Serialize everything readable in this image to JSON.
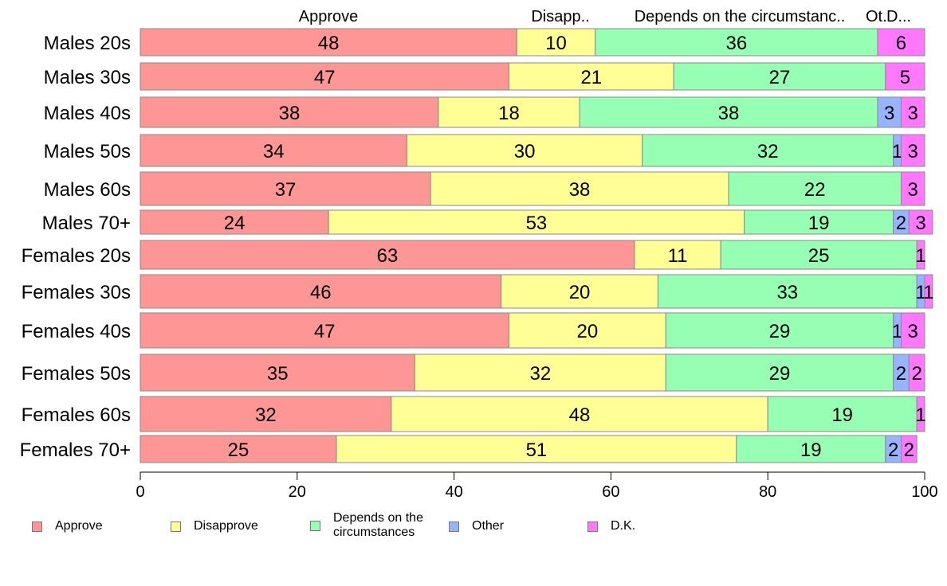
{
  "chart_data": {
    "type": "bar",
    "orientation": "horizontal",
    "stacked": true,
    "categories": [
      "Males 20s",
      "Males 30s",
      "Males 40s",
      "Males 50s",
      "Males 60s",
      "Males 70+",
      "Females 20s",
      "Females 30s",
      "Females 40s",
      "Females 50s",
      "Females 60s",
      "Females 70+"
    ],
    "series": [
      {
        "name": "Approve",
        "color": "#ff9696",
        "values": [
          48,
          47,
          38,
          34,
          37,
          24,
          63,
          46,
          47,
          35,
          32,
          25
        ]
      },
      {
        "name": "Disapprove",
        "color": "#ffff96",
        "values": [
          10,
          21,
          18,
          30,
          38,
          53,
          11,
          20,
          20,
          32,
          48,
          51
        ]
      },
      {
        "name": "Depends on the circumstances",
        "color": "#96ffb4",
        "values": [
          36,
          27,
          38,
          32,
          22,
          19,
          25,
          33,
          29,
          29,
          19,
          19
        ]
      },
      {
        "name": "Other",
        "color": "#96b4ff",
        "values": [
          0,
          0,
          3,
          1,
          0,
          2,
          0,
          1,
          1,
          2,
          0,
          2
        ]
      },
      {
        "name": "D.K.",
        "color": "#ff78ff",
        "values": [
          6,
          5,
          3,
          3,
          3,
          3,
          1,
          1,
          3,
          2,
          1,
          2
        ]
      }
    ],
    "top_labels": [
      "Approve",
      "Disapp..",
      "Depends on the circumstanc..",
      "Ot.",
      "D..."
    ],
    "xlim": [
      0,
      100
    ],
    "xticks": [
      0,
      20,
      40,
      60,
      80,
      100
    ],
    "legend_position": "bottom",
    "grid": false
  },
  "legend": [
    {
      "label": "Approve",
      "color": "#ff9696"
    },
    {
      "label": "Disapprove",
      "color": "#ffff96"
    },
    {
      "label": "Depends on the\ncircumstances",
      "color": "#96ffb4"
    },
    {
      "label": "Other",
      "color": "#96b4ff"
    },
    {
      "label": "D.K.",
      "color": "#ff78ff"
    }
  ]
}
